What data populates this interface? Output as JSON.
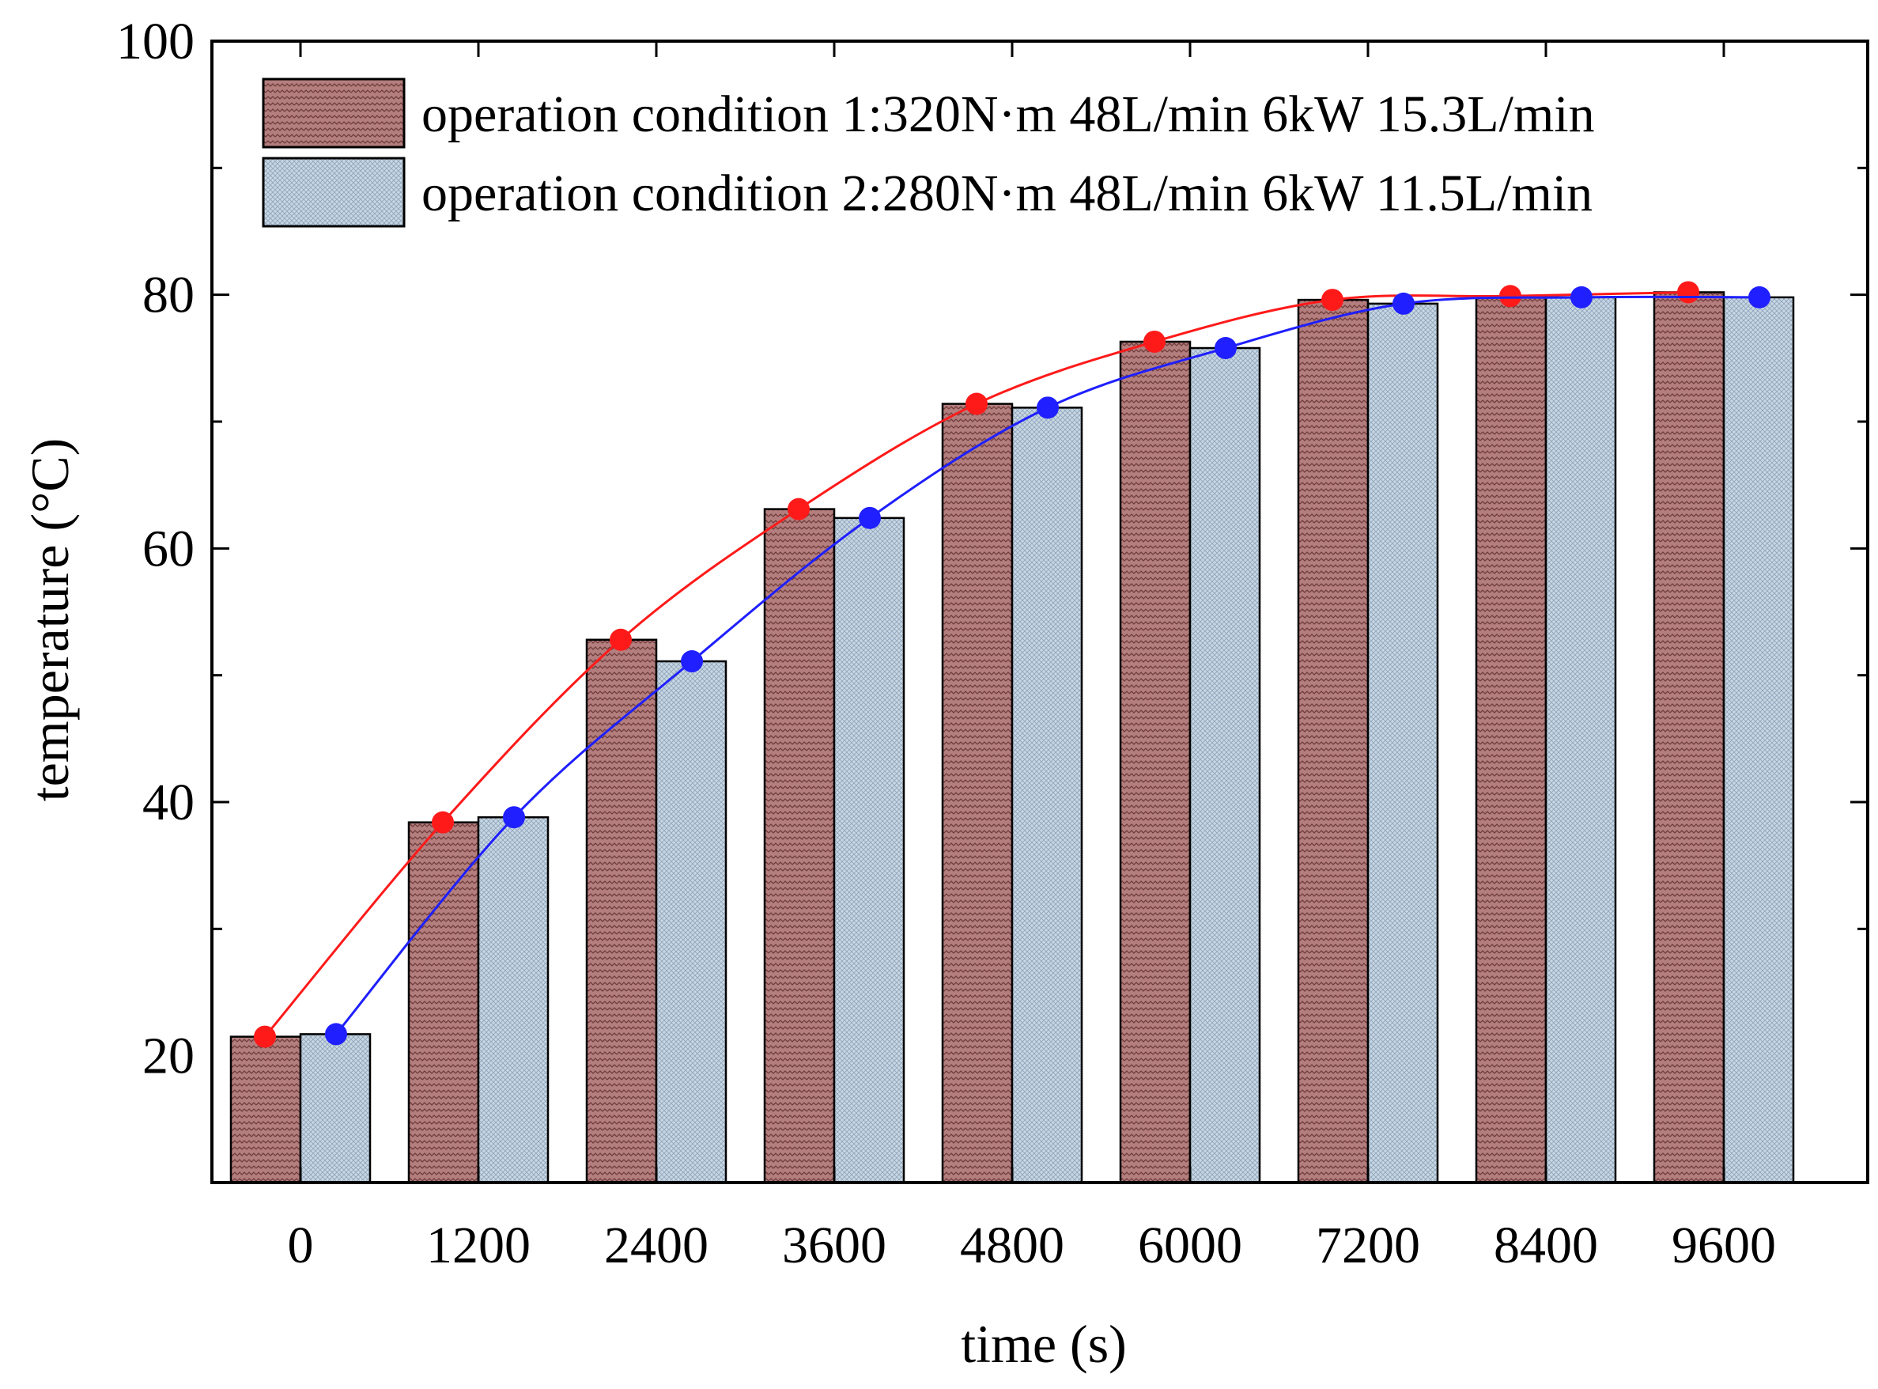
{
  "chart_data": {
    "type": "bar",
    "title": "",
    "xlabel": "time (s)",
    "ylabel": "temperature (°C)",
    "categories": [
      "0",
      "1200",
      "2400",
      "3600",
      "4800",
      "6000",
      "7200",
      "8400",
      "9600"
    ],
    "ylim": [
      10,
      100
    ],
    "yticks": [
      20,
      40,
      60,
      80,
      100
    ],
    "grid": false,
    "legend_position": "top",
    "series": [
      {
        "name": "operation condition 1:320N·m 48L/min 6kW 15.3L/min",
        "values": [
          21.5,
          38.4,
          52.8,
          63.1,
          71.4,
          76.3,
          79.6,
          79.9,
          80.2
        ],
        "bar_color": "#b47e7e",
        "line_color": "#ff1a1a",
        "pattern": "zigzag"
      },
      {
        "name": "operation condition 2:280N·m 48L/min 6kW 11.5L/min",
        "values": [
          21.7,
          38.8,
          51.1,
          62.4,
          71.1,
          75.8,
          79.3,
          79.8,
          79.8
        ],
        "bar_color": "#c9d7e3",
        "line_color": "#1f1fff",
        "pattern": "crosshatch"
      }
    ]
  }
}
